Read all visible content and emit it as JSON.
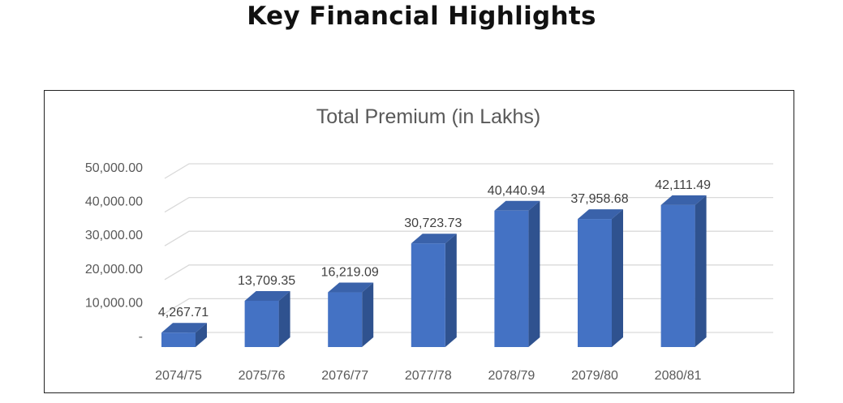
{
  "page": {
    "title": "Key Financial Highlights"
  },
  "chart_data": {
    "type": "bar",
    "title": "Total Premium (in Lakhs)",
    "categories": [
      "2074/75",
      "2075/76",
      "2076/77",
      "2077/78",
      "2078/79",
      "2079/80",
      "2080/81"
    ],
    "values": [
      4267.71,
      13709.35,
      16219.09,
      30723.73,
      40440.94,
      37958.68,
      42111.49
    ],
    "value_labels": [
      "4,267.71",
      "13,709.35",
      "16,219.09",
      "30,723.73",
      "40,440.94",
      "37,958.68",
      "42,111.49"
    ],
    "y_ticks": [
      0,
      10000,
      20000,
      30000,
      40000,
      50000
    ],
    "y_tick_labels": [
      "-",
      "10,000.00",
      "20,000.00",
      "30,000.00",
      "40,000.00",
      "50,000.00"
    ],
    "ylim": [
      0,
      50000
    ],
    "xlabel": "",
    "ylabel": "",
    "grid": true,
    "legend": "none",
    "style": "3d-column",
    "colors": {
      "bar_front": "#4472C4",
      "bar_side": "#2F528F",
      "bar_top": "#3A62AA",
      "grid": "#D9D9D9",
      "text": "#595959"
    }
  }
}
